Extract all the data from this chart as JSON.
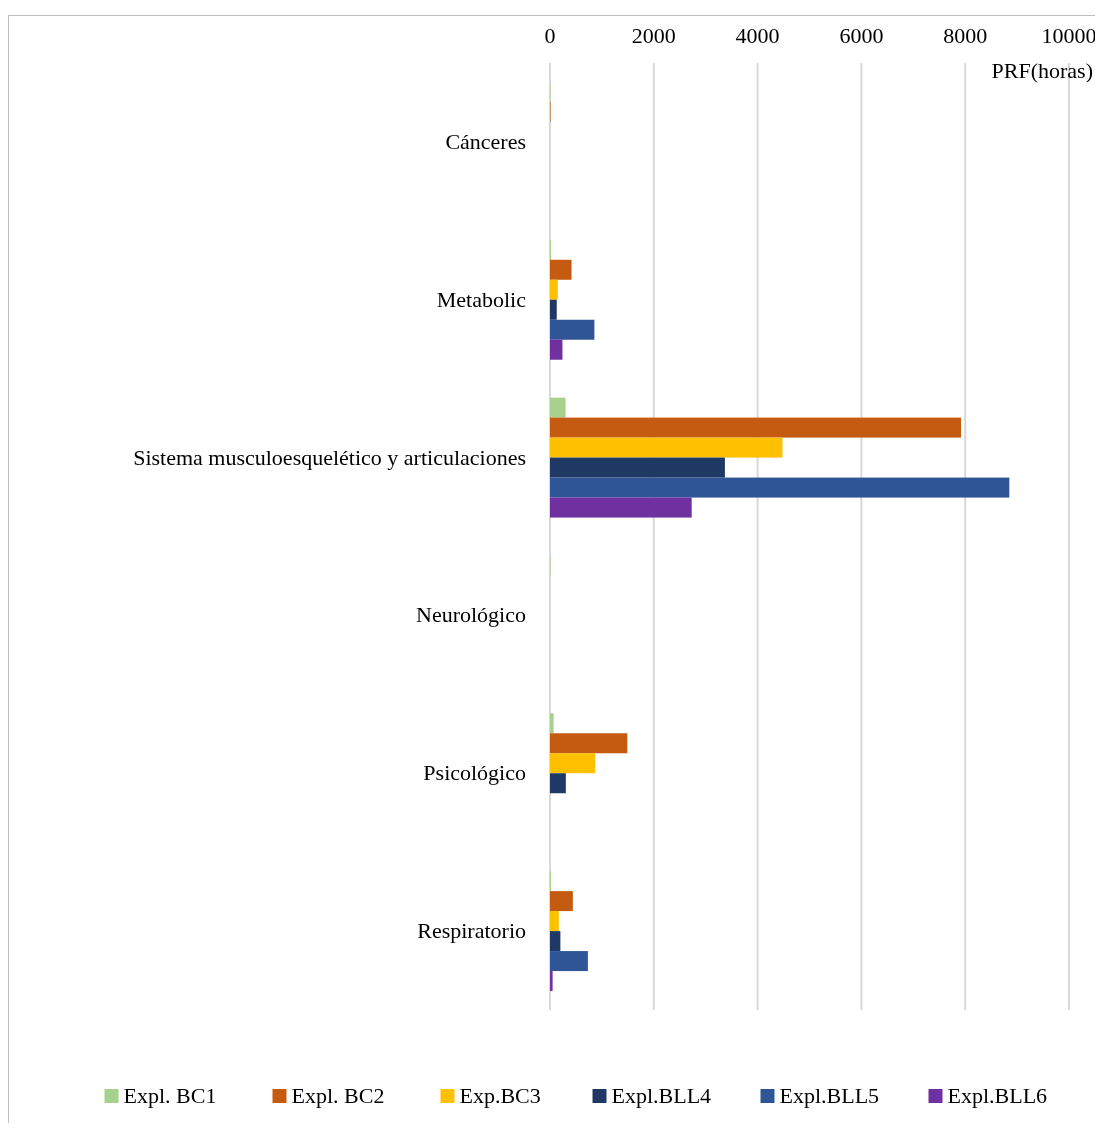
{
  "chart_data": {
    "type": "bar",
    "orientation": "horizontal",
    "xlabel": "PRF(horas)",
    "categories": [
      "Cánceres",
      "Metabolic",
      "Sistema musculoesquelético y articulaciones",
      "Neurológico",
      "Psicológico",
      "Respiratorio"
    ],
    "series": [
      {
        "name": "Expl. BC1",
        "color": "#a9d18e",
        "values": [
          10,
          20,
          300,
          10,
          70,
          20
        ]
      },
      {
        "name": "Expl. BC2",
        "color": "#c55a11",
        "values": [
          10,
          415,
          7920,
          0,
          1490,
          440
        ]
      },
      {
        "name": "Exp.BC3",
        "color": "#ffc000",
        "values": [
          0,
          150,
          4480,
          0,
          870,
          170
        ]
      },
      {
        "name": "Expl.BLL4",
        "color": "#203864",
        "values": [
          0,
          130,
          3370,
          0,
          305,
          200
        ]
      },
      {
        "name": "Expl.BLL5",
        "color": "#2f5597",
        "values": [
          0,
          855,
          8850,
          0,
          0,
          730
        ]
      },
      {
        "name": "Expl.BLL6",
        "color": "#7030a0",
        "values": [
          0,
          240,
          2730,
          0,
          0,
          50
        ]
      }
    ],
    "xlim": [
      0,
      10000
    ],
    "xticks": [
      0,
      2000,
      4000,
      6000,
      8000,
      10000
    ],
    "grid": "x",
    "legend": "bottom"
  }
}
